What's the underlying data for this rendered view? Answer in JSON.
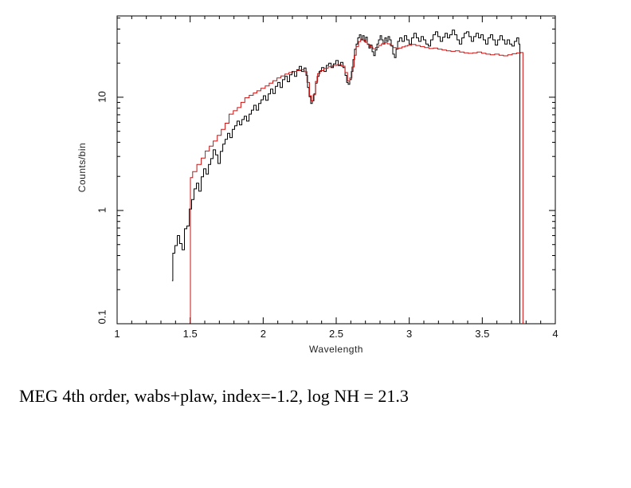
{
  "caption": "MEG 4th order, wabs+plaw, index=-1.2, log NH = 21.3",
  "colors": {
    "frame": "#000000",
    "data_series": "#000000",
    "model_series": "#cc1111",
    "text": "#111111",
    "background": "#ffffff"
  },
  "chart_data": {
    "type": "line",
    "title": "",
    "xlabel": "Wavelength",
    "ylabel": "Counts/bin",
    "grid": false,
    "legend": "none",
    "x_scale": "linear",
    "y_scale": "log",
    "xlim": [
      1,
      4
    ],
    "ylim": [
      0.1,
      52.2
    ],
    "x_ticks_major": [
      1,
      1.5,
      2,
      2.5,
      3,
      3.5,
      4
    ],
    "x_tick_labels": [
      "1",
      "1.5",
      "2",
      "2.5",
      "3",
      "3.5",
      "4"
    ],
    "x_minor_step": 0.1,
    "y_ticks_major": [
      0.1,
      1,
      10
    ],
    "y_tick_labels": [
      "0.1",
      "1",
      "10"
    ],
    "series": [
      {
        "name": "observed-counts-black",
        "color": "#000000",
        "style": "step",
        "points": [
          [
            1.376,
            0.24
          ],
          [
            1.387,
            0.42
          ],
          [
            1.404,
            0.49
          ],
          [
            1.42,
            0.6
          ],
          [
            1.436,
            0.51
          ],
          [
            1.453,
            0.45
          ],
          [
            1.469,
            0.69
          ],
          [
            1.486,
            0.73
          ],
          [
            1.502,
            1.03
          ],
          [
            1.518,
            1.25
          ],
          [
            1.535,
            1.55
          ],
          [
            1.551,
            1.74
          ],
          [
            1.567,
            1.48
          ],
          [
            1.584,
            1.98
          ],
          [
            1.6,
            2.33
          ],
          [
            1.617,
            2.1
          ],
          [
            1.633,
            2.55
          ],
          [
            1.649,
            2.87
          ],
          [
            1.666,
            3.43
          ],
          [
            1.682,
            3.1
          ],
          [
            1.698,
            2.6
          ],
          [
            1.715,
            3.32
          ],
          [
            1.731,
            3.85
          ],
          [
            1.747,
            4.25
          ],
          [
            1.764,
            4.8
          ],
          [
            1.78,
            4.4
          ],
          [
            1.796,
            5.2
          ],
          [
            1.813,
            5.6
          ],
          [
            1.829,
            6.15
          ],
          [
            1.846,
            5.7
          ],
          [
            1.862,
            6.35
          ],
          [
            1.878,
            6.8
          ],
          [
            1.895,
            6.15
          ],
          [
            1.911,
            7.1
          ],
          [
            1.927,
            7.7
          ],
          [
            1.944,
            8.5
          ],
          [
            1.96,
            7.7
          ],
          [
            1.977,
            8.8
          ],
          [
            1.993,
            9.5
          ],
          [
            2.009,
            10.3
          ],
          [
            2.026,
            9.4
          ],
          [
            2.042,
            10.7
          ],
          [
            2.058,
            11.8
          ],
          [
            2.075,
            10.8
          ],
          [
            2.091,
            12.5
          ],
          [
            2.108,
            13.5
          ],
          [
            2.124,
            12.2
          ],
          [
            2.14,
            14.3
          ],
          [
            2.157,
            15.3
          ],
          [
            2.173,
            13.7
          ],
          [
            2.189,
            15.8
          ],
          [
            2.206,
            16.9
          ],
          [
            2.222,
            15.3
          ],
          [
            2.238,
            17.5
          ],
          [
            2.255,
            18.7
          ],
          [
            2.271,
            16.9
          ],
          [
            2.288,
            18.1
          ],
          [
            2.298,
            15.6
          ],
          [
            2.309,
            12.2
          ],
          [
            2.32,
            10.1
          ],
          [
            2.331,
            8.8
          ],
          [
            2.342,
            9.3
          ],
          [
            2.353,
            10.7
          ],
          [
            2.364,
            13.3
          ],
          [
            2.375,
            15.3
          ],
          [
            2.391,
            16.9
          ],
          [
            2.408,
            18.3
          ],
          [
            2.424,
            16.9
          ],
          [
            2.44,
            19.1
          ],
          [
            2.457,
            20.0
          ],
          [
            2.473,
            18.3
          ],
          [
            2.489,
            19.7
          ],
          [
            2.506,
            21.1
          ],
          [
            2.522,
            19.0
          ],
          [
            2.538,
            20.3
          ],
          [
            2.555,
            18.3
          ],
          [
            2.566,
            15.6
          ],
          [
            2.577,
            13.5
          ],
          [
            2.587,
            13.0
          ],
          [
            2.598,
            14.3
          ],
          [
            2.609,
            16.9
          ],
          [
            2.62,
            21.5
          ],
          [
            2.631,
            26.5
          ],
          [
            2.642,
            29.5
          ],
          [
            2.653,
            33.4
          ],
          [
            2.664,
            35.6
          ],
          [
            2.675,
            32.1
          ],
          [
            2.686,
            34.9
          ],
          [
            2.697,
            31.1
          ],
          [
            2.707,
            33.9
          ],
          [
            2.718,
            29.5
          ],
          [
            2.729,
            27.2
          ],
          [
            2.74,
            28.9
          ],
          [
            2.751,
            25.2
          ],
          [
            2.762,
            23.3
          ],
          [
            2.773,
            26.1
          ],
          [
            2.784,
            29.5
          ],
          [
            2.795,
            32.1
          ],
          [
            2.806,
            34.9
          ],
          [
            2.816,
            32.1
          ],
          [
            2.827,
            29.5
          ],
          [
            2.838,
            33.4
          ],
          [
            2.849,
            31.1
          ],
          [
            2.86,
            34.3
          ],
          [
            2.871,
            32.1
          ],
          [
            2.882,
            28.3
          ],
          [
            2.893,
            24.0
          ],
          [
            2.904,
            22.4
          ],
          [
            2.915,
            26.5
          ],
          [
            2.926,
            31.1
          ],
          [
            2.942,
            33.4
          ],
          [
            2.958,
            31.1
          ],
          [
            2.975,
            34.9
          ],
          [
            2.991,
            32.1
          ],
          [
            3.007,
            29.5
          ],
          [
            3.024,
            33.4
          ],
          [
            3.04,
            36.7
          ],
          [
            3.056,
            33.4
          ],
          [
            3.073,
            31.1
          ],
          [
            3.089,
            34.3
          ],
          [
            3.105,
            32.1
          ],
          [
            3.122,
            29.5
          ],
          [
            3.138,
            28.3
          ],
          [
            3.155,
            32.1
          ],
          [
            3.171,
            35.6
          ],
          [
            3.187,
            37.8
          ],
          [
            3.204,
            34.3
          ],
          [
            3.22,
            31.1
          ],
          [
            3.237,
            33.9
          ],
          [
            3.253,
            36.7
          ],
          [
            3.269,
            33.4
          ],
          [
            3.286,
            35.6
          ],
          [
            3.302,
            39.1
          ],
          [
            3.319,
            35.6
          ],
          [
            3.335,
            32.1
          ],
          [
            3.351,
            29.5
          ],
          [
            3.368,
            33.4
          ],
          [
            3.384,
            36.7
          ],
          [
            3.4,
            37.8
          ],
          [
            3.417,
            34.3
          ],
          [
            3.433,
            31.1
          ],
          [
            3.449,
            34.3
          ],
          [
            3.466,
            36.7
          ],
          [
            3.482,
            33.4
          ],
          [
            3.498,
            35.6
          ],
          [
            3.515,
            32.1
          ],
          [
            3.531,
            29.5
          ],
          [
            3.547,
            33.4
          ],
          [
            3.564,
            35.6
          ],
          [
            3.58,
            32.1
          ],
          [
            3.597,
            28.9
          ],
          [
            3.613,
            32.1
          ],
          [
            3.629,
            34.9
          ],
          [
            3.646,
            32.1
          ],
          [
            3.662,
            29.5
          ],
          [
            3.679,
            32.1
          ],
          [
            3.695,
            29.5
          ],
          [
            3.711,
            28.3
          ],
          [
            3.728,
            31.1
          ],
          [
            3.744,
            33.4
          ],
          [
            3.755,
            29.5
          ],
          [
            3.76,
            0.102
          ]
        ]
      },
      {
        "name": "model-wabs-plaw-red",
        "color": "#cc1111",
        "style": "step",
        "points": [
          [
            1.5,
            0.102
          ],
          [
            1.504,
            1.95
          ],
          [
            1.53,
            2.2
          ],
          [
            1.562,
            2.55
          ],
          [
            1.59,
            2.9
          ],
          [
            1.617,
            3.35
          ],
          [
            1.645,
            3.7
          ],
          [
            1.671,
            4.1
          ],
          [
            1.7,
            4.6
          ],
          [
            1.726,
            5.2
          ],
          [
            1.753,
            5.9
          ],
          [
            1.78,
            7.1
          ],
          [
            1.81,
            7.6
          ],
          [
            1.835,
            8.1
          ],
          [
            1.86,
            9.0
          ],
          [
            1.889,
            9.9
          ],
          [
            1.92,
            10.4
          ],
          [
            1.944,
            10.9
          ],
          [
            1.97,
            11.4
          ],
          [
            1.998,
            12.0
          ],
          [
            2.03,
            12.6
          ],
          [
            2.053,
            13.3
          ],
          [
            2.08,
            14.0
          ],
          [
            2.108,
            14.8
          ],
          [
            2.135,
            15.4
          ],
          [
            2.162,
            16.0
          ],
          [
            2.19,
            16.5
          ],
          [
            2.217,
            16.9
          ],
          [
            2.244,
            17.2
          ],
          [
            2.271,
            17.5
          ],
          [
            2.29,
            16.8
          ],
          [
            2.31,
            13.5
          ],
          [
            2.325,
            10.3
          ],
          [
            2.335,
            9.3
          ],
          [
            2.35,
            10.5
          ],
          [
            2.365,
            13.8
          ],
          [
            2.38,
            16.2
          ],
          [
            2.4,
            17.2
          ],
          [
            2.43,
            18.0
          ],
          [
            2.46,
            18.6
          ],
          [
            2.49,
            19.1
          ],
          [
            2.52,
            19.4
          ],
          [
            2.55,
            18.8
          ],
          [
            2.57,
            16.5
          ],
          [
            2.585,
            13.9
          ],
          [
            2.6,
            14.8
          ],
          [
            2.615,
            18.5
          ],
          [
            2.63,
            23.5
          ],
          [
            2.645,
            28.0
          ],
          [
            2.66,
            31.0
          ],
          [
            2.675,
            32.5
          ],
          [
            2.69,
            32.0
          ],
          [
            2.705,
            30.5
          ],
          [
            2.72,
            29.2
          ],
          [
            2.74,
            27.8
          ],
          [
            2.76,
            26.8
          ],
          [
            2.78,
            27.5
          ],
          [
            2.8,
            28.6
          ],
          [
            2.82,
            29.6
          ],
          [
            2.84,
            30.2
          ],
          [
            2.86,
            29.6
          ],
          [
            2.88,
            28.6
          ],
          [
            2.9,
            27.4
          ],
          [
            2.92,
            26.8
          ],
          [
            2.94,
            27.2
          ],
          [
            2.96,
            27.8
          ],
          [
            2.98,
            28.3
          ],
          [
            3.0,
            28.8
          ],
          [
            3.03,
            29.2
          ],
          [
            3.06,
            28.6
          ],
          [
            3.09,
            28.0
          ],
          [
            3.12,
            27.4
          ],
          [
            3.15,
            26.9
          ],
          [
            3.18,
            27.2
          ],
          [
            3.21,
            26.6
          ],
          [
            3.24,
            26.1
          ],
          [
            3.27,
            25.7
          ],
          [
            3.3,
            25.4
          ],
          [
            3.33,
            25.7
          ],
          [
            3.36,
            25.1
          ],
          [
            3.39,
            24.7
          ],
          [
            3.42,
            24.4
          ],
          [
            3.45,
            24.7
          ],
          [
            3.48,
            25.1
          ],
          [
            3.51,
            24.5
          ],
          [
            3.54,
            24.0
          ],
          [
            3.57,
            23.7
          ],
          [
            3.6,
            24.0
          ],
          [
            3.63,
            23.5
          ],
          [
            3.66,
            23.2
          ],
          [
            3.69,
            23.7
          ],
          [
            3.72,
            24.2
          ],
          [
            3.75,
            24.6
          ],
          [
            3.775,
            24.8
          ],
          [
            3.782,
            0.102
          ]
        ]
      }
    ]
  }
}
